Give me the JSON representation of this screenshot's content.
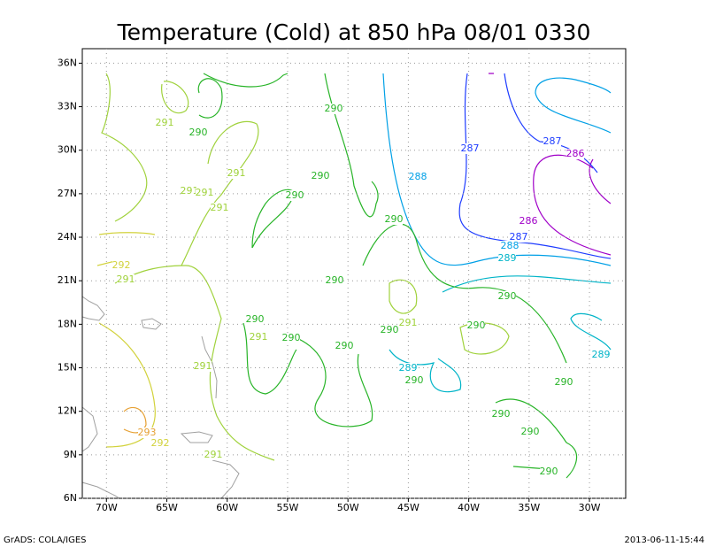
{
  "title": "Temperature (Cold) at 850 hPa 08/01 0330",
  "map": {
    "xlim": [
      -72,
      -27
    ],
    "ylim": [
      6,
      37
    ],
    "xticks": [
      {
        "value": -70,
        "label": "70W"
      },
      {
        "value": -65,
        "label": "65W"
      },
      {
        "value": -60,
        "label": "60W"
      },
      {
        "value": -55,
        "label": "55W"
      },
      {
        "value": -50,
        "label": "50W"
      },
      {
        "value": -45,
        "label": "45W"
      },
      {
        "value": -40,
        "label": "40W"
      },
      {
        "value": -35,
        "label": "35W"
      },
      {
        "value": -30,
        "label": "30W"
      }
    ],
    "yticks": [
      {
        "value": 6,
        "label": "6N"
      },
      {
        "value": 9,
        "label": "9N"
      },
      {
        "value": 12,
        "label": "12N"
      },
      {
        "value": 15,
        "label": "15N"
      },
      {
        "value": 18,
        "label": "18N"
      },
      {
        "value": 21,
        "label": "21N"
      },
      {
        "value": 24,
        "label": "24N"
      },
      {
        "value": 27,
        "label": "27N"
      },
      {
        "value": 30,
        "label": "30N"
      },
      {
        "value": 33,
        "label": "33N"
      },
      {
        "value": 36,
        "label": "36N"
      }
    ],
    "grid": true,
    "contour_levels": [
      {
        "value": 286,
        "color": "#a000c8"
      },
      {
        "value": 287,
        "color": "#1e3cff"
      },
      {
        "value": 288,
        "color": "#00a0e6"
      },
      {
        "value": 289,
        "color": "#00b4c8"
      },
      {
        "value": 290,
        "color": "#28b428"
      },
      {
        "value": 291,
        "color": "#a0d23c"
      },
      {
        "value": 292,
        "color": "#d2d23c"
      },
      {
        "value": 293,
        "color": "#e6a032"
      }
    ],
    "contour_labels": [
      291,
      290,
      290,
      287,
      287,
      286,
      291,
      291,
      291,
      290,
      288,
      290,
      291,
      290,
      286,
      287,
      288,
      289,
      292,
      291,
      290,
      290,
      290,
      291,
      291,
      290,
      290,
      290,
      290,
      289,
      291,
      289,
      290,
      290,
      290,
      290,
      293,
      292,
      291,
      290
    ]
  },
  "footer_left": "GrADS: COLA/IGES",
  "footer_right": "2013-06-11-15:44"
}
